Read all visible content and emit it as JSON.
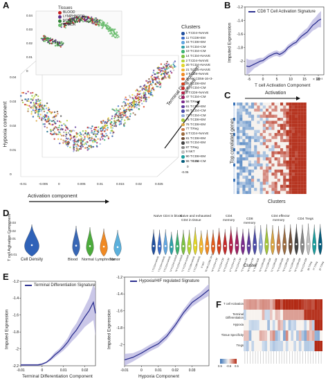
{
  "panel_labels": {
    "a": "A",
    "b": "B",
    "c": "C",
    "d": "D",
    "e": "E",
    "f": "F"
  },
  "colors": {
    "blood": "#c81e1e",
    "lymphnode": "#5a2a84",
    "normal": "#2e7d32",
    "tumor": "#66bb6a",
    "line": "#2b2f8f",
    "band": "#b8b4e0",
    "heat_red": "#b22a15",
    "heat_blue": "#3b74b8"
  },
  "panel_a": {
    "inset_legend_title": "Tissues",
    "tissues": [
      {
        "name": "BLOOD",
        "color": "#c81e1e"
      },
      {
        "name": "LYMPHNODE",
        "color": "#5a2a84"
      },
      {
        "name": "NORMAL",
        "color": "#2e7d32"
      },
      {
        "name": "TUMOR",
        "color": "#66bb6a"
      }
    ],
    "inset_y_ticks": [
      "0.04",
      "0.03",
      "0.02",
      "0.01",
      "0"
    ],
    "clusters_title": "Clusters",
    "clusters": [
      {
        "label": "1 T:CD4+NAIVE",
        "color": "#1f4e9e"
      },
      {
        "label": "11 T:CD8+EM",
        "color": "#3b6cc8"
      },
      {
        "label": "15 T:CD8+EM",
        "color": "#62a6e0"
      },
      {
        "label": "16 T:CD4+CM",
        "color": "#2fa0a8"
      },
      {
        "label": "19 T:CD4+CM",
        "color": "#3cb371"
      },
      {
        "label": "14 T:CD4+NAIVE",
        "color": "#7cc242"
      },
      {
        "label": "2 T:CD4+NAIVE",
        "color": "#b4d334"
      },
      {
        "label": "20 T:CD4+NAIVE",
        "color": "#e3d72b"
      },
      {
        "label": "21 T:CD4+NAIVE",
        "color": "#f2b52c"
      },
      {
        "label": "3 T:CD8+NAIVE",
        "color": "#f08a24"
      },
      {
        "label": "30 NK:CD56-16+3-",
        "color": "#e35d1c"
      },
      {
        "label": "39 T:CD8+EM",
        "color": "#d43d1a"
      },
      {
        "label": "42 T:CD4+CM",
        "color": "#c62a2a"
      },
      {
        "label": "5 T:CD8+NAIVE",
        "color": "#b41f48"
      },
      {
        "label": "47 T:CD4+CM",
        "color": "#9e1f63"
      },
      {
        "label": "56 T:Reg",
        "color": "#7b2a8c"
      },
      {
        "label": "61 T:CD8+EM",
        "color": "#5e3a9c"
      },
      {
        "label": "66 T:CD4+CM",
        "color": "#4a4aa8"
      },
      {
        "label": "72 T:CD4+CM",
        "color": "#8fa8d8"
      },
      {
        "label": "75 T:CD8+EM",
        "color": "#a4c639"
      },
      {
        "label": "76 T:CD8+EM",
        "color": "#d9a441"
      },
      {
        "label": "77 T:Reg",
        "color": "#c97b4a"
      },
      {
        "label": "8 T:CD4+NAIVE",
        "color": "#9c6b3e"
      },
      {
        "label": "81 T:CD8+EM",
        "color": "#6f4e37"
      },
      {
        "label": "83 T:CD4+EM",
        "color": "#444444"
      },
      {
        "label": "87 T:Reg",
        "color": "#888888"
      },
      {
        "label": "9 NKT",
        "color": "#c0c0c0"
      },
      {
        "label": "90 T:CD8+EM",
        "color": "#1b9e9e"
      },
      {
        "label": "96 T:CD4+CM",
        "color": "#005a7a"
      }
    ],
    "y_ticks": [
      "0.04",
      "0.03",
      "0.02",
      "0.01",
      "0"
    ],
    "x_ticks": [
      "-0.01",
      "-0.005",
      "0",
      "0.005",
      "0.01",
      "0.015",
      "0.02",
      "0.025"
    ],
    "z_ticks": [
      "-0.05",
      "0",
      "0.05"
    ],
    "y_label": "Hypoxia component",
    "x_label": "Activation component",
    "z_label_1": "Terminal Differentiation",
    "z_label_2": "Component"
  },
  "panel_b": {
    "legend": "CD8 T Cell Activation Signature",
    "y_label": "Imputed Expression",
    "x_label": "T cell Activation Component",
    "x_exponent": "× 10⁻³",
    "chart_data": {
      "type": "line",
      "x": [
        -6,
        -5,
        -4,
        -3,
        -2,
        -1,
        0,
        1,
        2,
        3,
        4,
        5,
        6,
        7,
        8,
        9,
        10,
        11,
        12,
        13,
        14,
        15,
        16,
        17,
        18,
        19,
        20,
        21
      ],
      "y": [
        -2.07,
        -2.08,
        -2.06,
        -2.04,
        -2.02,
        -2.0,
        -1.99,
        -1.96,
        -1.93,
        -1.91,
        -1.89,
        -1.88,
        -1.9,
        -1.88,
        -1.85,
        -1.8,
        -1.77,
        -1.74,
        -1.72,
        -1.67,
        -1.63,
        -1.6,
        -1.57,
        -1.52,
        -1.47,
        -1.44,
        -1.4,
        -1.38
      ],
      "lower": [
        -2.2,
        -2.18,
        -2.14,
        -2.1,
        -2.08,
        -2.05,
        -2.03,
        -2.0,
        -1.97,
        -1.95,
        -1.93,
        -1.92,
        -1.94,
        -1.92,
        -1.89,
        -1.84,
        -1.81,
        -1.78,
        -1.76,
        -1.72,
        -1.68,
        -1.66,
        -1.63,
        -1.59,
        -1.55,
        -1.53,
        -1.5,
        -1.5
      ],
      "upper": [
        -1.96,
        -1.98,
        -1.98,
        -1.98,
        -1.96,
        -1.95,
        -1.95,
        -1.92,
        -1.89,
        -1.87,
        -1.85,
        -1.84,
        -1.86,
        -1.84,
        -1.81,
        -1.76,
        -1.73,
        -1.7,
        -1.68,
        -1.62,
        -1.58,
        -1.54,
        -1.51,
        -1.45,
        -1.39,
        -1.35,
        -1.3,
        -1.26
      ],
      "xlim": [
        -6.5,
        22
      ],
      "ylim": [
        -2.2,
        -1.2
      ],
      "x_ticks": [
        -5,
        0,
        5,
        10,
        15,
        20
      ],
      "y_ticks": [
        -1.2,
        -1.4,
        -1.6,
        -1.8,
        -2
      ]
    }
  },
  "panel_c": {
    "title": "Activation",
    "y_label": "Top correlated genes",
    "x_label": "Clusters"
  },
  "panel_d": {
    "y_label": "T cell Activation Component",
    "y_ticks": [
      "0.03",
      "0.02",
      "0.01",
      "0",
      "-0.01"
    ],
    "group_a": {
      "label": "Cell Density"
    },
    "group_b": {
      "labels": [
        "Blood",
        "Normal",
        "Lymphnode",
        "Tumor"
      ]
    },
    "group_c": {
      "headers": [
        "Naive CD4 in blood",
        "Naive and exhausted",
        "CD4 in tissue",
        "CD4",
        "memory",
        "CD8",
        "memory",
        "CD4 effector",
        "memory",
        "CD4 Tregs"
      ],
      "x_label": "Cluster",
      "clusters": [
        "1 T:CD4+NAIVE",
        "2 T:CD4+NAIVE",
        "8 T:CD4+NAIVE",
        "14 T:CD4+NAIVE",
        "20 T:CD4+NAIVE",
        "21 T:CD4+NAIVE",
        "3 T:CD8+NAIVE",
        "5 T:CD8+NAIVE",
        "9 NKT",
        "30 NK:CD56-16+3-",
        "16 T:CD4+CM",
        "19 T:CD4+CM",
        "42 T:CD4+CM",
        "47 T:CD4+CM",
        "66 T:CD4+CM",
        "72 T:CD4+CM",
        "96 T:CD4+CM",
        "11 T:CD8+EM",
        "15 T:CD8+EM",
        "39 T:CD8+EM",
        "61 T:CD8+EM",
        "75 T:CD8+EM",
        "76 T:CD8+EM",
        "81 T:CD8+EM",
        "90 T:CD8+EM",
        "83 T:CD4+EM",
        "56 T:Reg",
        "77 T:Reg",
        "87 T:Reg"
      ]
    }
  },
  "panel_e1": {
    "legend": "Terminal Differentiation Signature",
    "y_label": "Imputed Expression",
    "x_label": "Terminal Differentiation Component",
    "chart_data": {
      "type": "line",
      "x": [
        -0.01,
        -0.008,
        -0.006,
        -0.004,
        -0.002,
        0,
        0.002,
        0.004,
        0.006,
        0.008,
        0.01,
        0.012,
        0.014,
        0.016,
        0.018,
        0.02,
        0.022,
        0.024,
        0.025
      ],
      "y": [
        -2.19,
        -2.19,
        -2.19,
        -2.19,
        -2.19,
        -2.18,
        -2.16,
        -2.12,
        -2.07,
        -2.03,
        -1.98,
        -1.92,
        -1.84,
        -1.78,
        -1.7,
        -1.62,
        -1.55,
        -1.45,
        -1.58
      ],
      "lower": [
        -2.2,
        -2.2,
        -2.2,
        -2.2,
        -2.2,
        -2.19,
        -2.17,
        -2.14,
        -2.1,
        -2.06,
        -2.02,
        -1.97,
        -1.91,
        -1.86,
        -1.8,
        -1.74,
        -1.7,
        -1.66,
        -1.85
      ],
      "upper": [
        -2.18,
        -2.18,
        -2.18,
        -2.18,
        -2.18,
        -2.17,
        -2.15,
        -2.1,
        -2.04,
        -2.0,
        -1.94,
        -1.87,
        -1.77,
        -1.7,
        -1.6,
        -1.5,
        -1.4,
        -1.24,
        -1.3
      ],
      "xlim": [
        -0.01,
        0.025
      ],
      "ylim": [
        -2.2,
        -1.2
      ],
      "x_ticks": [
        -0.01,
        0,
        0.01,
        0.02
      ],
      "y_ticks": [
        -1.2,
        -1.4,
        -1.6,
        -1.8,
        -2,
        -2.2
      ]
    }
  },
  "panel_e2": {
    "legend": "Hypoxia/HIF regulated Signature",
    "y_label": "Imputed Expression",
    "x_label": "Hypoxia Component",
    "chart_data": {
      "type": "line",
      "x": [
        -0.01,
        -0.005,
        0,
        0.005,
        0.01,
        0.015,
        0.02,
        0.025,
        0.03,
        0.035,
        0.04
      ],
      "y": [
        -2.18,
        -2.15,
        -2.1,
        -2.04,
        -1.99,
        -1.9,
        -1.77,
        -1.62,
        -1.5,
        -1.43,
        -1.35
      ],
      "lower": [
        -2.25,
        -2.2,
        -2.14,
        -2.08,
        -2.03,
        -1.94,
        -1.81,
        -1.66,
        -1.55,
        -1.48,
        -1.42
      ],
      "upper": [
        -2.11,
        -2.1,
        -2.06,
        -2.0,
        -1.95,
        -1.86,
        -1.73,
        -1.58,
        -1.45,
        -1.38,
        -1.28
      ],
      "xlim": [
        -0.01,
        0.04
      ],
      "ylim": [
        -2.25,
        -1.2
      ],
      "x_ticks": [
        -0.01,
        0,
        0.01,
        0.02,
        0.03
      ],
      "y_ticks": [
        -1.2,
        -1.4,
        -1.6,
        -1.8,
        -2
      ]
    }
  },
  "panel_f": {
    "rows": [
      "T cell Activation",
      "Terminal Differentiation",
      "Hypoxia",
      "Tissue Specificity",
      "Tregs"
    ],
    "colorbar": [
      "0.5",
      "-0.5",
      "0.5"
    ]
  }
}
